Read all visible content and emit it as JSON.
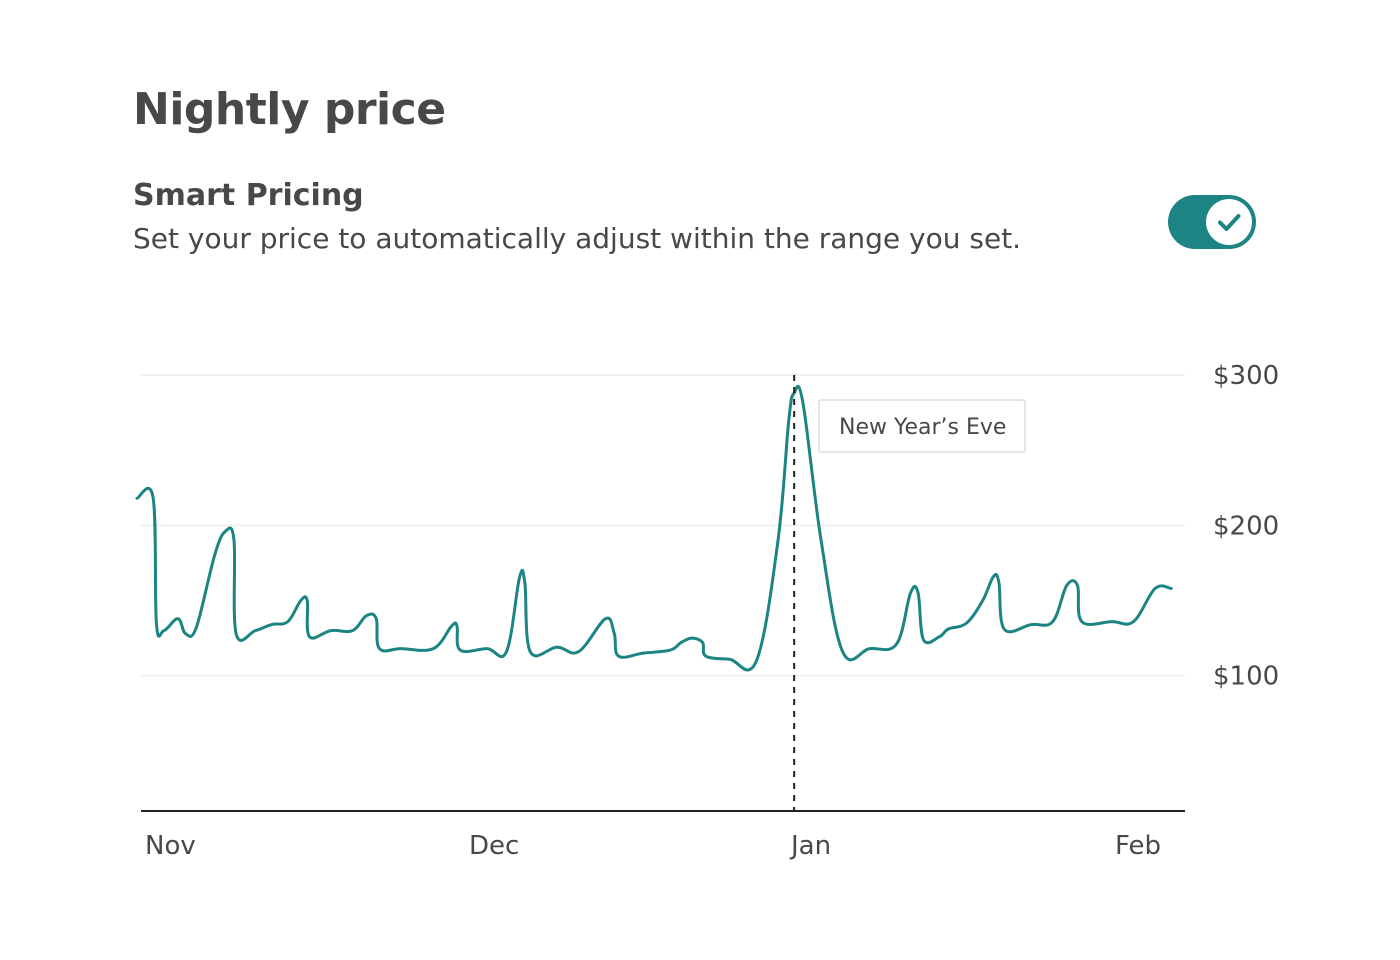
{
  "header": {
    "title": "Nightly price"
  },
  "smart_pricing": {
    "title": "Smart Pricing",
    "description": "Set your price to automatically adjust within the range you set.",
    "toggle_on": true,
    "toggle_icon": "checkmark-icon"
  },
  "colors": {
    "accent": "#1c8482",
    "text": "#484848",
    "grid": "#f0f0f0",
    "axis": "#222222"
  },
  "chart_data": {
    "type": "line",
    "x_labels": [
      "Nov",
      "Dec",
      "Jan",
      "Feb"
    ],
    "y_ticks": [
      {
        "value": 300,
        "label": "$300"
      },
      {
        "value": 200,
        "label": "$200"
      },
      {
        "value": 100,
        "label": "$100"
      }
    ],
    "ylim": [
      10,
      300
    ],
    "xlim": [
      0,
      97
    ],
    "grid": true,
    "marker": {
      "x": 61,
      "label": "New Year’s Eve"
    },
    "series": [
      {
        "values": [
          [
            0,
            218
          ],
          [
            1.5,
            218
          ],
          [
            1.8,
            135
          ],
          [
            2.5,
            130
          ],
          [
            3.8,
            138
          ],
          [
            4.5,
            128
          ],
          [
            5.5,
            132
          ],
          [
            7.2,
            180
          ],
          [
            8.2,
            196
          ],
          [
            9,
            190
          ],
          [
            9.2,
            128
          ],
          [
            11,
            130
          ],
          [
            12.5,
            134
          ],
          [
            14,
            136
          ],
          [
            15.2,
            150
          ],
          [
            15.8,
            150
          ],
          [
            16,
            126
          ],
          [
            18,
            130
          ],
          [
            20,
            130
          ],
          [
            21.3,
            140
          ],
          [
            22.2,
            138
          ],
          [
            22.5,
            118
          ],
          [
            24.5,
            118
          ],
          [
            27.5,
            118
          ],
          [
            29.2,
            133
          ],
          [
            29.7,
            133
          ],
          [
            30,
            117
          ],
          [
            32.5,
            118
          ],
          [
            34.3,
            116
          ],
          [
            35.5,
            165
          ],
          [
            36,
            162
          ],
          [
            36.5,
            116
          ],
          [
            39,
            119
          ],
          [
            41,
            116
          ],
          [
            43.5,
            138
          ],
          [
            44.3,
            128
          ],
          [
            44.7,
            113
          ],
          [
            47,
            115
          ],
          [
            49.5,
            117
          ],
          [
            50.5,
            122
          ],
          [
            51.5,
            125
          ],
          [
            52.5,
            122
          ],
          [
            52.8,
            113
          ],
          [
            55,
            111
          ],
          [
            57.5,
            110
          ],
          [
            59.5,
            190
          ],
          [
            60.5,
            270
          ],
          [
            61,
            288
          ],
          [
            61.8,
            282
          ],
          [
            63.5,
            190
          ],
          [
            65.5,
            116
          ],
          [
            68,
            118
          ],
          [
            70.5,
            121
          ],
          [
            71.8,
            155
          ],
          [
            72.5,
            155
          ],
          [
            73,
            124
          ],
          [
            74.5,
            126
          ],
          [
            75.3,
            131
          ],
          [
            77,
            135
          ],
          [
            78.5,
            150
          ],
          [
            79.5,
            166
          ],
          [
            80,
            162
          ],
          [
            80.5,
            131
          ],
          [
            83,
            134
          ],
          [
            85,
            136
          ],
          [
            86.3,
            160
          ],
          [
            87.3,
            160
          ],
          [
            87.7,
            136
          ],
          [
            90.5,
            136
          ],
          [
            92.5,
            136
          ],
          [
            94.5,
            158
          ],
          [
            96,
            158
          ]
        ]
      }
    ]
  }
}
